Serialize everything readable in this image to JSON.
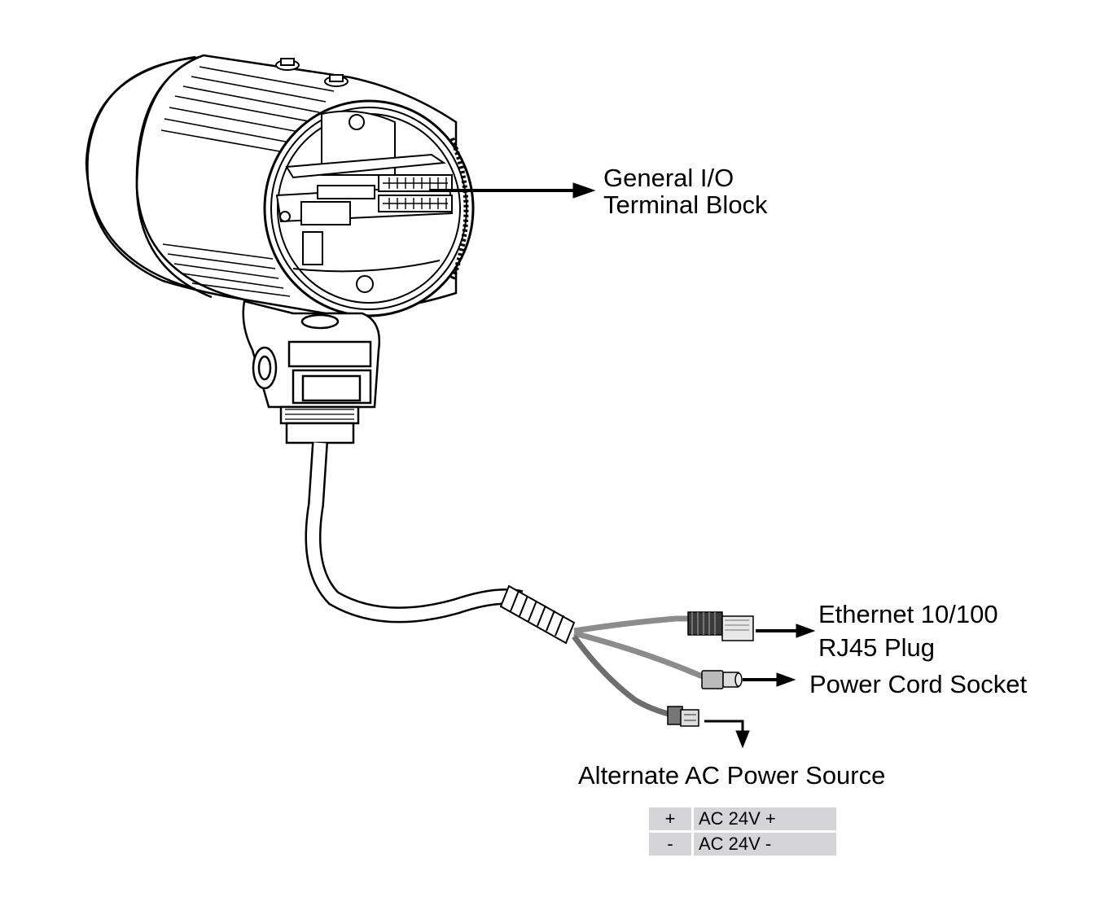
{
  "labels": {
    "io_line1": "General I/O",
    "io_line2": "Terminal Block",
    "eth_line1": "Ethernet 10/100",
    "eth_line2": "RJ45 Plug",
    "power_socket": "Power Cord Socket",
    "alt_power": "Alternate AC Power Source"
  },
  "pin_table": [
    {
      "polarity": "+",
      "description": "AC 24V +"
    },
    {
      "polarity": "-",
      "description": "AC 24V -"
    }
  ],
  "colors": {
    "line": "#000000",
    "cable_grey": "#8c8c8c",
    "cable_dark": "#6e6e6e",
    "table_fill": "#d5d5d7"
  }
}
